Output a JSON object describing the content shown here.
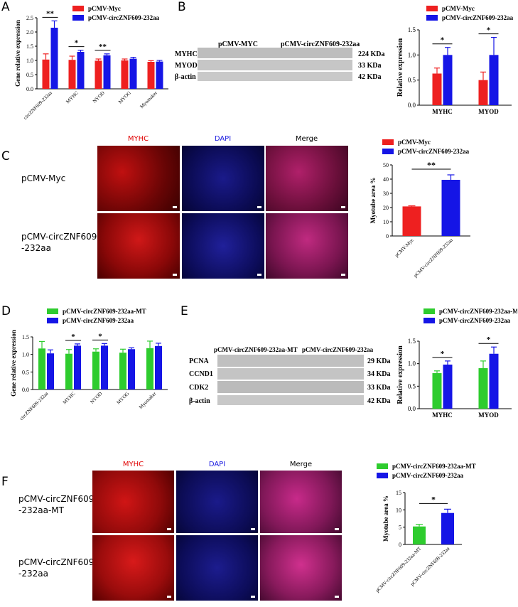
{
  "panels": {
    "A": "A",
    "B": "B",
    "C": "C",
    "D": "D",
    "E": "E",
    "F": "F"
  },
  "colors": {
    "red": "#ee2020",
    "blue": "#1515e6",
    "green": "#2ecc2e"
  },
  "legend_myc": [
    "pCMV-Myc",
    "pCMV-circZNF609-232aa"
  ],
  "legend_mt": [
    "pCMV-circZNF609-232aa-MT",
    "pCMV-circZNF609-232aa"
  ],
  "panelB": {
    "lanes": [
      "pCMV-MYC",
      "pCMV-circZNF609-232aa"
    ],
    "proteins": [
      "MYHC",
      "MYOD",
      "β-actin"
    ],
    "sizes": [
      "224 KDa",
      "33 KDa",
      "42 KDa"
    ]
  },
  "panelE": {
    "lanes": [
      "pCMV-circZNF609-232aa-MT",
      "pCMV-circZNF609-232aa"
    ],
    "proteins": [
      "PCNA",
      "CCND1",
      "CDK2",
      "β-actin"
    ],
    "sizes": [
      "29 KDa",
      "34 KDa",
      "33 KDa",
      "42 KDa"
    ]
  },
  "panelC": {
    "columns": [
      "MYHC",
      "DAPI",
      "Merge"
    ],
    "rows": [
      "pCMV-Myc",
      "pCMV-circZNF609\n-232aa"
    ]
  },
  "panelF": {
    "columns": [
      "MYHC",
      "DAPI",
      "Merge"
    ],
    "rows": [
      "pCMV-circZNF609\n-232aa-MT",
      "pCMV-circZNF609\n-232aa"
    ]
  },
  "chart_data": [
    {
      "id": "A",
      "type": "bar",
      "ylabel": "Gene relative expression",
      "ylim": [
        0,
        2.5
      ],
      "yticks": [
        0,
        0.5,
        1.0,
        1.5,
        2.0,
        2.5
      ],
      "categories": [
        "circZNF609-232aa",
        "MYHC",
        "NYOD",
        "MYOG",
        "Myomaker"
      ],
      "series": [
        {
          "name": "pCMV-Myc",
          "color": "#ee2020",
          "values": [
            1.03,
            1.02,
            0.99,
            1.0,
            0.95
          ],
          "errors": [
            0.2,
            0.13,
            0.06,
            0.05,
            0.04
          ]
        },
        {
          "name": "pCMV-circZNF609-232aa",
          "color": "#1515e6",
          "values": [
            2.15,
            1.3,
            1.18,
            1.06,
            0.96
          ],
          "errors": [
            0.24,
            0.06,
            0.05,
            0.05,
            0.04
          ]
        }
      ],
      "sig": [
        {
          "cat": 0,
          "label": "**"
        },
        {
          "cat": 1,
          "label": "*"
        },
        {
          "cat": 2,
          "label": "**"
        }
      ]
    },
    {
      "id": "B",
      "type": "bar",
      "ylabel": "Relative expression",
      "ylim": [
        0,
        1.5
      ],
      "yticks": [
        0.0,
        0.5,
        1.0,
        1.5
      ],
      "categories": [
        "MYHC",
        "MYOD"
      ],
      "series": [
        {
          "name": "pCMV-Myc",
          "color": "#ee2020",
          "values": [
            0.63,
            0.5
          ],
          "errors": [
            0.11,
            0.16
          ]
        },
        {
          "name": "pCMV-circZNF609-232aa",
          "color": "#1515e6",
          "values": [
            1.0,
            1.0
          ],
          "errors": [
            0.15,
            0.35
          ]
        }
      ],
      "sig": [
        {
          "cat": 0,
          "label": "*"
        },
        {
          "cat": 1,
          "label": "*"
        }
      ]
    },
    {
      "id": "C",
      "type": "bar",
      "ylabel": "Myotube area %",
      "ylim": [
        0,
        50
      ],
      "yticks": [
        0,
        10,
        20,
        30,
        40,
        50
      ],
      "categories": [
        "pCMV-Myc",
        "pCMV-circZNF609-232aa"
      ],
      "series": [
        {
          "name": "values",
          "colors": [
            "#ee2020",
            "#1515e6"
          ],
          "values": [
            20.8,
            39.5
          ],
          "errors": [
            0.4,
            3.5
          ]
        }
      ],
      "sig": [
        {
          "label": "**"
        }
      ]
    },
    {
      "id": "D",
      "type": "bar",
      "ylabel": "Gene relative expression",
      "ylim": [
        0,
        1.5
      ],
      "yticks": [
        0.0,
        0.5,
        1.0,
        1.5
      ],
      "categories": [
        "circZNF609-232aa",
        "MYHC",
        "NYOD",
        "MYOG",
        "Myomaker"
      ],
      "series": [
        {
          "name": "pCMV-circZNF609-232aa-MT",
          "color": "#2ecc2e",
          "values": [
            1.17,
            1.02,
            1.08,
            1.05,
            1.18
          ],
          "errors": [
            0.2,
            0.12,
            0.08,
            0.1,
            0.2
          ]
        },
        {
          "name": "pCMV-circZNF609-232aa",
          "color": "#1515e6",
          "values": [
            1.03,
            1.25,
            1.25,
            1.15,
            1.24
          ],
          "errors": [
            0.1,
            0.05,
            0.06,
            0.04,
            0.08
          ]
        }
      ],
      "sig": [
        {
          "cat": 1,
          "label": "*"
        },
        {
          "cat": 2,
          "label": "*"
        }
      ]
    },
    {
      "id": "E",
      "type": "bar",
      "ylabel": "Relative expression",
      "ylim": [
        0,
        1.5
      ],
      "yticks": [
        0.0,
        0.5,
        1.0,
        1.5
      ],
      "categories": [
        "MYHC",
        "MYOD"
      ],
      "series": [
        {
          "name": "pCMV-circZNF609-232aa-MT",
          "color": "#2ecc2e",
          "values": [
            0.79,
            0.9
          ],
          "errors": [
            0.05,
            0.16
          ]
        },
        {
          "name": "pCMV-circZNF609-232aa",
          "color": "#1515e6",
          "values": [
            0.98,
            1.22
          ],
          "errors": [
            0.08,
            0.15
          ]
        }
      ],
      "sig": [
        {
          "cat": 0,
          "label": "*"
        },
        {
          "cat": 1,
          "label": "*"
        }
      ]
    },
    {
      "id": "F",
      "type": "bar",
      "ylabel": "Myotube area %",
      "ylim": [
        0,
        15
      ],
      "yticks": [
        0,
        5,
        10,
        15
      ],
      "categories": [
        "pCMV-circZNF609-232aa-MT",
        "pCMV-circZNF609-232aa"
      ],
      "series": [
        {
          "name": "values",
          "colors": [
            "#2ecc2e",
            "#1515e6"
          ],
          "values": [
            5.2,
            9.1
          ],
          "errors": [
            0.6,
            1.1
          ]
        }
      ],
      "sig": [
        {
          "label": "*"
        }
      ]
    }
  ]
}
